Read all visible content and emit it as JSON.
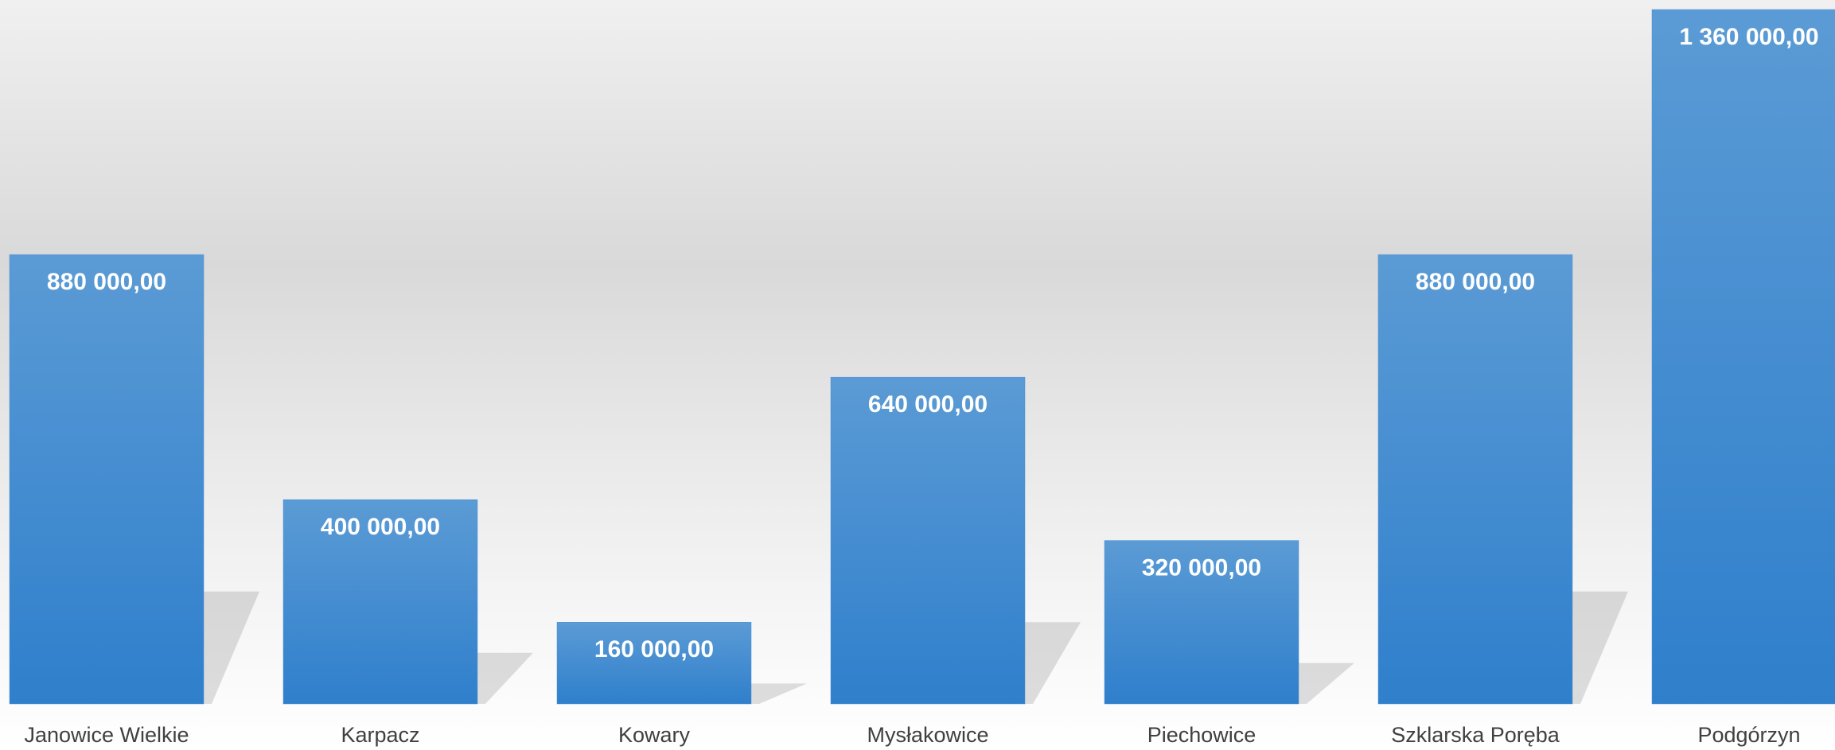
{
  "chart_data": {
    "type": "bar",
    "categories": [
      "Janowice Wielkie",
      "Karpacz",
      "Kowary",
      "Mysłakowice",
      "Piechowice",
      "Szklarska Poręba",
      "Podgórzyn"
    ],
    "values": [
      880000,
      400000,
      160000,
      640000,
      320000,
      880000,
      1360000
    ],
    "value_labels": [
      "880 000,00",
      "400 000,00",
      "160 000,00",
      "640 000,00",
      "320 000,00",
      "880 000,00",
      "1 360 000,00"
    ],
    "color": "#4a8fd6"
  }
}
